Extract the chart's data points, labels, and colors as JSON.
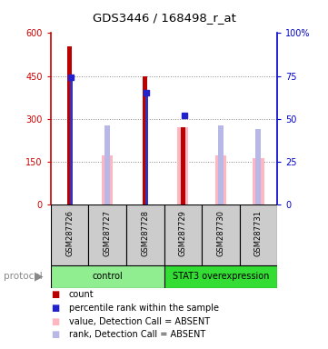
{
  "title": "GDS3446 / 168498_r_at",
  "samples": [
    "GSM287726",
    "GSM287727",
    "GSM287728",
    "GSM287729",
    "GSM287730",
    "GSM287731"
  ],
  "count_values": [
    555,
    0,
    450,
    270,
    0,
    0
  ],
  "absent_value_bars": [
    0,
    170,
    0,
    270,
    170,
    160
  ],
  "absent_rank_bars": [
    0,
    275,
    0,
    0,
    275,
    265
  ],
  "percentile_rank_dot": [
    445,
    0,
    390,
    310,
    0,
    0
  ],
  "rank_bar_values": [
    445,
    0,
    400,
    0,
    0,
    0
  ],
  "ylim_left": [
    0,
    600
  ],
  "ylim_right": [
    0,
    100
  ],
  "yticks_left": [
    0,
    150,
    300,
    450,
    600
  ],
  "yticks_right": [
    0,
    25,
    50,
    75,
    100
  ],
  "ytick_labels_left": [
    "0",
    "150",
    "300",
    "450",
    "600"
  ],
  "ytick_labels_right": [
    "0",
    "25",
    "50",
    "75",
    "100%"
  ],
  "groups": [
    {
      "label": "control",
      "samples": [
        0,
        1,
        2
      ],
      "color": "#90EE90"
    },
    {
      "label": "STAT3 overexpression",
      "samples": [
        3,
        4,
        5
      ],
      "color": "#33DD33"
    }
  ],
  "color_count": "#BB0000",
  "color_rank_bar": "#3333BB",
  "color_rank_dot": "#2222CC",
  "color_absent_value": "#FFB6C1",
  "color_absent_rank": "#B8B8E8",
  "color_axis_left": "#CC0000",
  "color_axis_right": "#0000CC",
  "bg_color": "#FFFFFF",
  "grid_color": "#888888",
  "sample_bg": "#CCCCCC",
  "legend_items": [
    {
      "color": "#BB0000",
      "label": "count"
    },
    {
      "color": "#2222CC",
      "label": "percentile rank within the sample"
    },
    {
      "color": "#FFB6C1",
      "label": "value, Detection Call = ABSENT"
    },
    {
      "color": "#B8B8E8",
      "label": "rank, Detection Call = ABSENT"
    }
  ]
}
